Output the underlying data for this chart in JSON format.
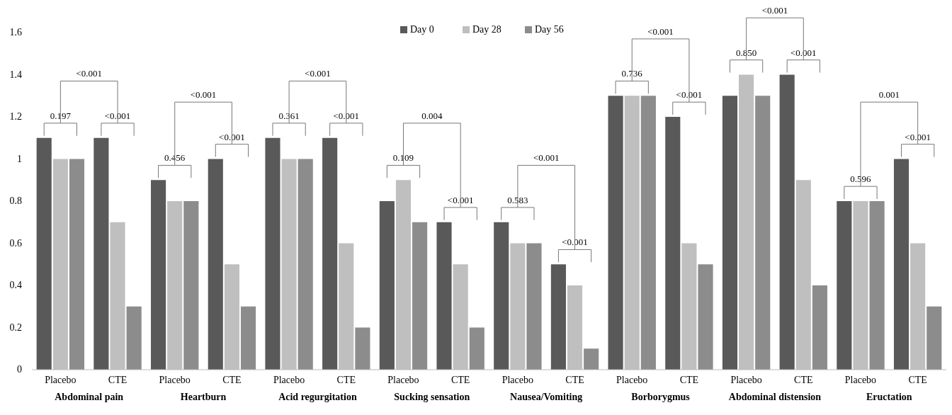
{
  "chart_data": {
    "type": "bar",
    "categories": [
      "Placebo",
      "CTE",
      "Placebo",
      "CTE",
      "Placebo",
      "CTE",
      "Placebo",
      "CTE",
      "Placebo",
      "CTE",
      "Placebo",
      "CTE",
      "Placebo",
      "CTE",
      "Placebo",
      "CTE"
    ],
    "series": [
      {
        "name": "Day 0",
        "color": "#595959",
        "values": [
          1.1,
          1.1,
          0.9,
          1.0,
          1.1,
          1.1,
          0.8,
          0.7,
          0.7,
          0.5,
          1.3,
          1.2,
          1.3,
          1.4,
          0.8,
          1.0
        ]
      },
      {
        "name": "Day 28",
        "color": "#bfbfbf",
        "values": [
          1.0,
          0.7,
          0.8,
          0.5,
          1.0,
          0.6,
          0.9,
          0.5,
          0.6,
          0.4,
          1.3,
          0.6,
          1.4,
          0.9,
          0.8,
          0.6
        ]
      },
      {
        "name": "Day 56",
        "color": "#8c8c8c",
        "values": [
          1.0,
          0.3,
          0.8,
          0.3,
          1.0,
          0.2,
          0.7,
          0.2,
          0.6,
          0.1,
          1.3,
          0.5,
          1.3,
          0.4,
          0.8,
          0.3
        ]
      }
    ],
    "ylim": [
      0,
      1.6
    ],
    "yticks": [
      0,
      0.2,
      0.4,
      0.6,
      0.8,
      1,
      1.2,
      1.4,
      1.6
    ],
    "legend": "top",
    "grid": false,
    "annotations": [
      "Abdominal pain",
      "Heartburn",
      "Acid regurgitation",
      "Sucking sensation",
      "Nausea/Vomiting",
      "Borborygmus",
      "Abdominal distension",
      "Eructation",
      "0.197",
      "<0.001",
      "<0.001",
      "0.456",
      "<0.001",
      "<0.001",
      "0.361",
      "<0.001",
      "<0.001",
      "0.109",
      "<0.001",
      "0.004",
      "0.583",
      "<0.001",
      "<0.001",
      "0.736",
      "<0.001",
      "<0.001",
      "0.850",
      "<0.001",
      "<0.001",
      "0.596",
      "<0.001",
      "0.001"
    ]
  }
}
